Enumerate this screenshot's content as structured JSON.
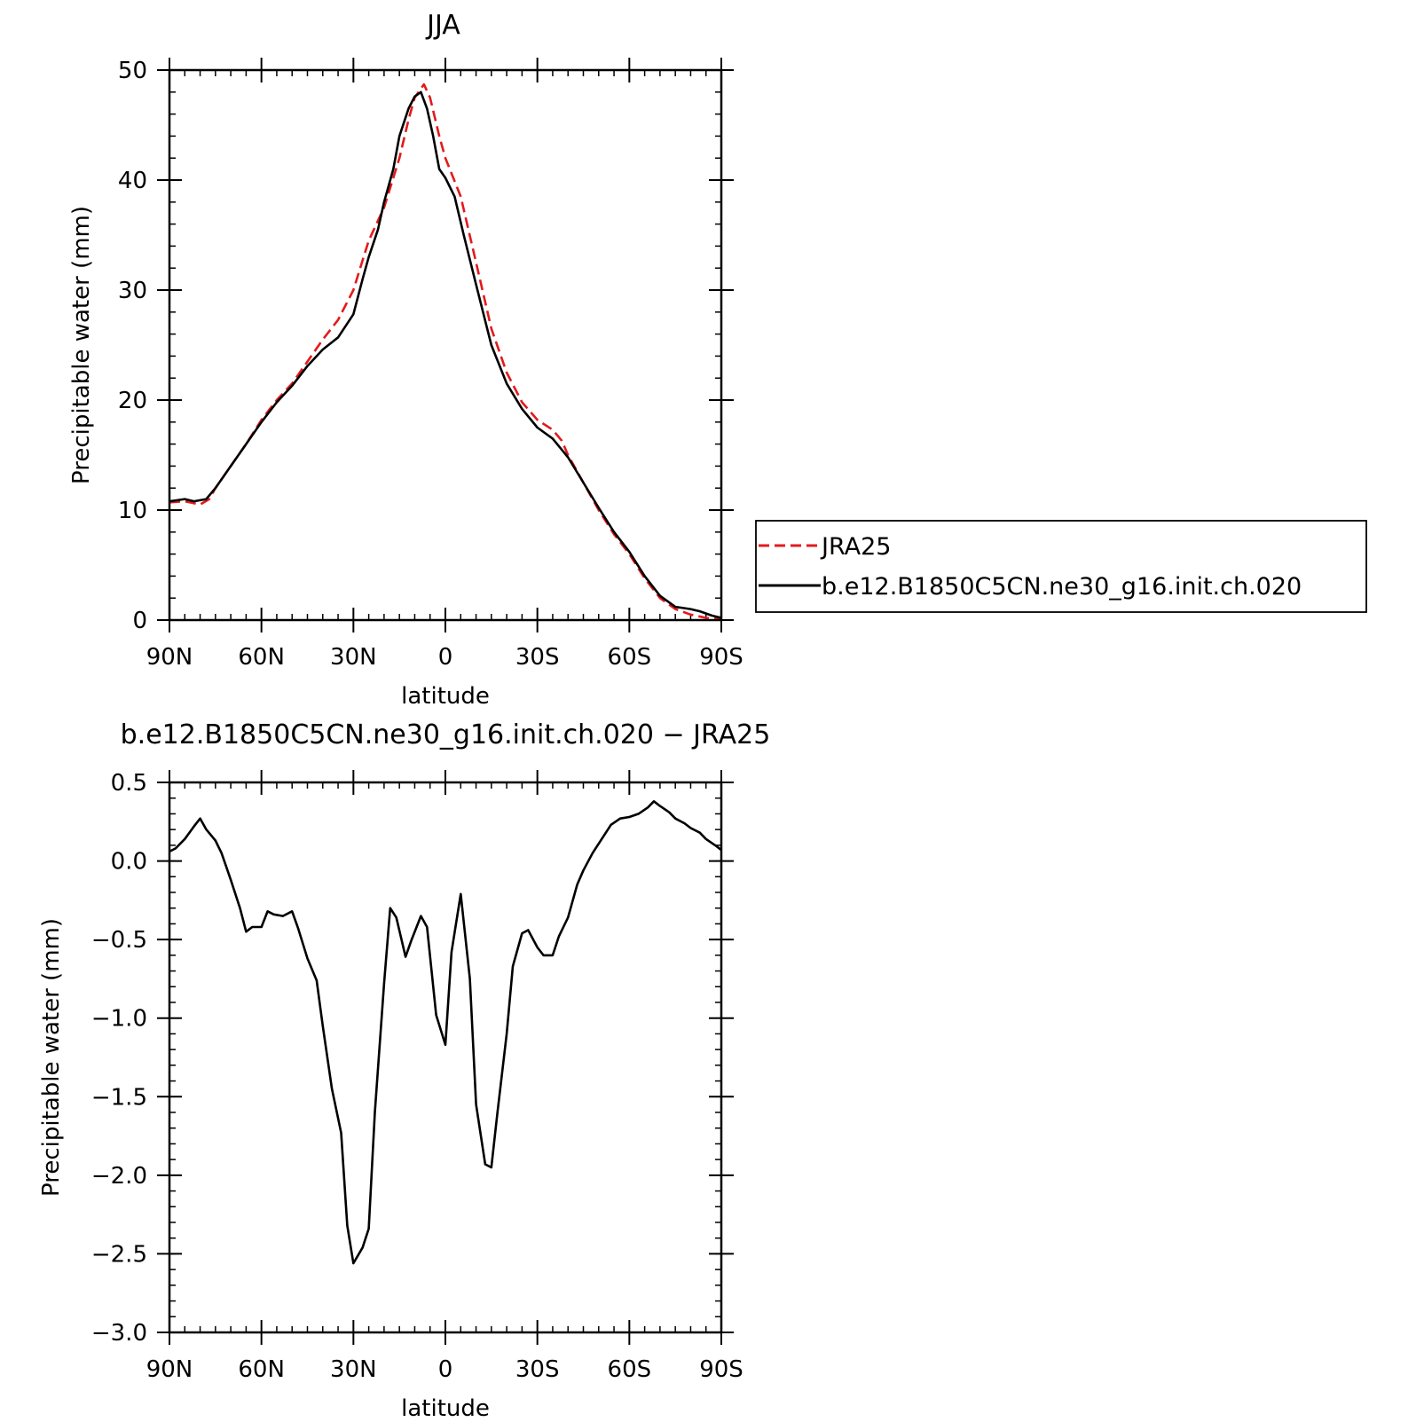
{
  "colors": {
    "jra": "#e41a1c",
    "model": "#000000",
    "background": "#ffffff"
  },
  "legend": {
    "jra_label": "JRA25",
    "model_label": "b.e12.B1850C5CN.ne30_g16.init.ch.020"
  },
  "chart_data": [
    {
      "type": "line",
      "title": "JJA",
      "xlabel": "latitude",
      "ylabel": "Precipitable water (mm)",
      "xlim": [
        90,
        -90
      ],
      "ylim": [
        0,
        50
      ],
      "xticks": [
        {
          "v": 90,
          "label": "90N"
        },
        {
          "v": 60,
          "label": "60N"
        },
        {
          "v": 30,
          "label": "30N"
        },
        {
          "v": 0,
          "label": "0"
        },
        {
          "v": -30,
          "label": "30S"
        },
        {
          "v": -60,
          "label": "60S"
        },
        {
          "v": -90,
          "label": "90S"
        }
      ],
      "yticks": [
        {
          "v": 0,
          "label": "0"
        },
        {
          "v": 10,
          "label": "10"
        },
        {
          "v": 20,
          "label": "20"
        },
        {
          "v": 30,
          "label": "30"
        },
        {
          "v": 40,
          "label": "40"
        },
        {
          "v": 50,
          "label": "50"
        }
      ],
      "legend_position": "right-bottom",
      "series": [
        {
          "name": "JRA25",
          "color": "#e41a1c",
          "dash": "dashed",
          "points": [
            [
              90,
              10.7
            ],
            [
              85,
              10.8
            ],
            [
              80,
              10.5
            ],
            [
              77,
              11.0
            ],
            [
              75,
              12.0
            ],
            [
              70,
              14.0
            ],
            [
              65,
              16.0
            ],
            [
              60,
              18.2
            ],
            [
              55,
              20.0
            ],
            [
              50,
              21.5
            ],
            [
              45,
              23.5
            ],
            [
              40,
              25.5
            ],
            [
              35,
              27.3
            ],
            [
              30,
              30.0
            ],
            [
              25,
              34.5
            ],
            [
              20,
              37.5
            ],
            [
              15,
              42.0
            ],
            [
              12,
              45.5
            ],
            [
              10,
              47.5
            ],
            [
              7,
              48.7
            ],
            [
              5,
              47.5
            ],
            [
              2,
              44.0
            ],
            [
              0,
              42.0
            ],
            [
              -5,
              38.5
            ],
            [
              -10,
              32.5
            ],
            [
              -15,
              26.5
            ],
            [
              -20,
              22.5
            ],
            [
              -25,
              19.8
            ],
            [
              -30,
              18.2
            ],
            [
              -35,
              17.3
            ],
            [
              -38,
              16.3
            ],
            [
              -40,
              15.0
            ],
            [
              -45,
              12.5
            ],
            [
              -50,
              10.0
            ],
            [
              -55,
              7.8
            ],
            [
              -60,
              6.0
            ],
            [
              -65,
              3.8
            ],
            [
              -70,
              2.0
            ],
            [
              -75,
              1.0
            ],
            [
              -80,
              0.5
            ],
            [
              -85,
              0.2
            ],
            [
              -90,
              0.1
            ]
          ]
        },
        {
          "name": "b.e12.B1850C5CN.ne30_g16.init.ch.020",
          "color": "#000000",
          "dash": "solid",
          "points": [
            [
              90,
              10.8
            ],
            [
              85,
              11.0
            ],
            [
              82,
              10.8
            ],
            [
              78,
              11.0
            ],
            [
              75,
              12.0
            ],
            [
              70,
              14.0
            ],
            [
              65,
              16.0
            ],
            [
              60,
              18.0
            ],
            [
              55,
              19.8
            ],
            [
              50,
              21.3
            ],
            [
              45,
              23.1
            ],
            [
              40,
              24.6
            ],
            [
              35,
              25.7
            ],
            [
              30,
              27.8
            ],
            [
              27,
              31.0
            ],
            [
              25,
              33.0
            ],
            [
              22,
              35.5
            ],
            [
              20,
              38.0
            ],
            [
              17,
              41.0
            ],
            [
              15,
              44.0
            ],
            [
              12,
              46.5
            ],
            [
              10,
              47.6
            ],
            [
              8,
              48.0
            ],
            [
              6,
              46.5
            ],
            [
              4,
              44.0
            ],
            [
              2,
              41.0
            ],
            [
              0,
              40.2
            ],
            [
              -3,
              38.5
            ],
            [
              -6,
              35.0
            ],
            [
              -10,
              30.5
            ],
            [
              -15,
              25.0
            ],
            [
              -20,
              21.5
            ],
            [
              -25,
              19.2
            ],
            [
              -30,
              17.5
            ],
            [
              -35,
              16.5
            ],
            [
              -40,
              14.8
            ],
            [
              -45,
              12.5
            ],
            [
              -50,
              10.2
            ],
            [
              -55,
              8.0
            ],
            [
              -60,
              6.2
            ],
            [
              -65,
              4.0
            ],
            [
              -70,
              2.2
            ],
            [
              -75,
              1.2
            ],
            [
              -80,
              1.0
            ],
            [
              -83,
              0.8
            ],
            [
              -87,
              0.4
            ],
            [
              -90,
              0.2
            ]
          ]
        }
      ]
    },
    {
      "type": "line",
      "title": "b.e12.B1850C5CN.ne30_g16.init.ch.020 − JRA25",
      "xlabel": "latitude",
      "ylabel": "Precipitable water (mm)",
      "xlim": [
        90,
        -90
      ],
      "ylim": [
        -3.0,
        0.5
      ],
      "xticks": [
        {
          "v": 90,
          "label": "90N"
        },
        {
          "v": 60,
          "label": "60N"
        },
        {
          "v": 30,
          "label": "30N"
        },
        {
          "v": 0,
          "label": "0"
        },
        {
          "v": -30,
          "label": "30S"
        },
        {
          "v": -60,
          "label": "60S"
        },
        {
          "v": -90,
          "label": "90S"
        }
      ],
      "yticks": [
        {
          "v": 0.5,
          "label": "0.5"
        },
        {
          "v": 0.0,
          "label": "0.0"
        },
        {
          "v": -0.5,
          "label": "−0.5"
        },
        {
          "v": -1.0,
          "label": "−1.0"
        },
        {
          "v": -1.5,
          "label": "−1.5"
        },
        {
          "v": -2.0,
          "label": "−2.0"
        },
        {
          "v": -2.5,
          "label": "−2.5"
        },
        {
          "v": -3.0,
          "label": "−3.0"
        }
      ],
      "series": [
        {
          "color": "#000000",
          "dash": "solid",
          "points": [
            [
              90,
              0.06
            ],
            [
              88,
              0.08
            ],
            [
              85,
              0.14
            ],
            [
              82,
              0.22
            ],
            [
              80,
              0.27
            ],
            [
              78,
              0.2
            ],
            [
              75,
              0.13
            ],
            [
              73,
              0.05
            ],
            [
              70,
              -0.12
            ],
            [
              67,
              -0.3
            ],
            [
              65,
              -0.45
            ],
            [
              63,
              -0.42
            ],
            [
              60,
              -0.42
            ],
            [
              58,
              -0.32
            ],
            [
              56,
              -0.34
            ],
            [
              53,
              -0.35
            ],
            [
              50,
              -0.32
            ],
            [
              48,
              -0.43
            ],
            [
              45,
              -0.62
            ],
            [
              42,
              -0.76
            ],
            [
              40,
              -1.05
            ],
            [
              37,
              -1.45
            ],
            [
              34,
              -1.73
            ],
            [
              32,
              -2.32
            ],
            [
              30,
              -2.56
            ],
            [
              27,
              -2.46
            ],
            [
              25,
              -2.34
            ],
            [
              23,
              -1.6
            ],
            [
              20,
              -0.78
            ],
            [
              18,
              -0.3
            ],
            [
              16,
              -0.36
            ],
            [
              13,
              -0.61
            ],
            [
              11,
              -0.5
            ],
            [
              8,
              -0.35
            ],
            [
              6,
              -0.42
            ],
            [
              3,
              -0.98
            ],
            [
              0,
              -1.17
            ],
            [
              -2,
              -0.58
            ],
            [
              -5,
              -0.21
            ],
            [
              -8,
              -0.75
            ],
            [
              -10,
              -1.55
            ],
            [
              -13,
              -1.93
            ],
            [
              -15,
              -1.95
            ],
            [
              -17,
              -1.6
            ],
            [
              -20,
              -1.1
            ],
            [
              -22,
              -0.67
            ],
            [
              -25,
              -0.46
            ],
            [
              -27,
              -0.44
            ],
            [
              -30,
              -0.55
            ],
            [
              -32,
              -0.6
            ],
            [
              -35,
              -0.6
            ],
            [
              -37,
              -0.48
            ],
            [
              -40,
              -0.36
            ],
            [
              -43,
              -0.15
            ],
            [
              -45,
              -0.06
            ],
            [
              -48,
              0.05
            ],
            [
              -51,
              0.14
            ],
            [
              -54,
              0.23
            ],
            [
              -57,
              0.27
            ],
            [
              -60,
              0.28
            ],
            [
              -63,
              0.3
            ],
            [
              -66,
              0.34
            ],
            [
              -68,
              0.38
            ],
            [
              -70,
              0.35
            ],
            [
              -73,
              0.31
            ],
            [
              -75,
              0.27
            ],
            [
              -78,
              0.24
            ],
            [
              -80,
              0.21
            ],
            [
              -83,
              0.18
            ],
            [
              -85,
              0.14
            ],
            [
              -88,
              0.1
            ],
            [
              -90,
              0.07
            ]
          ]
        }
      ]
    }
  ]
}
